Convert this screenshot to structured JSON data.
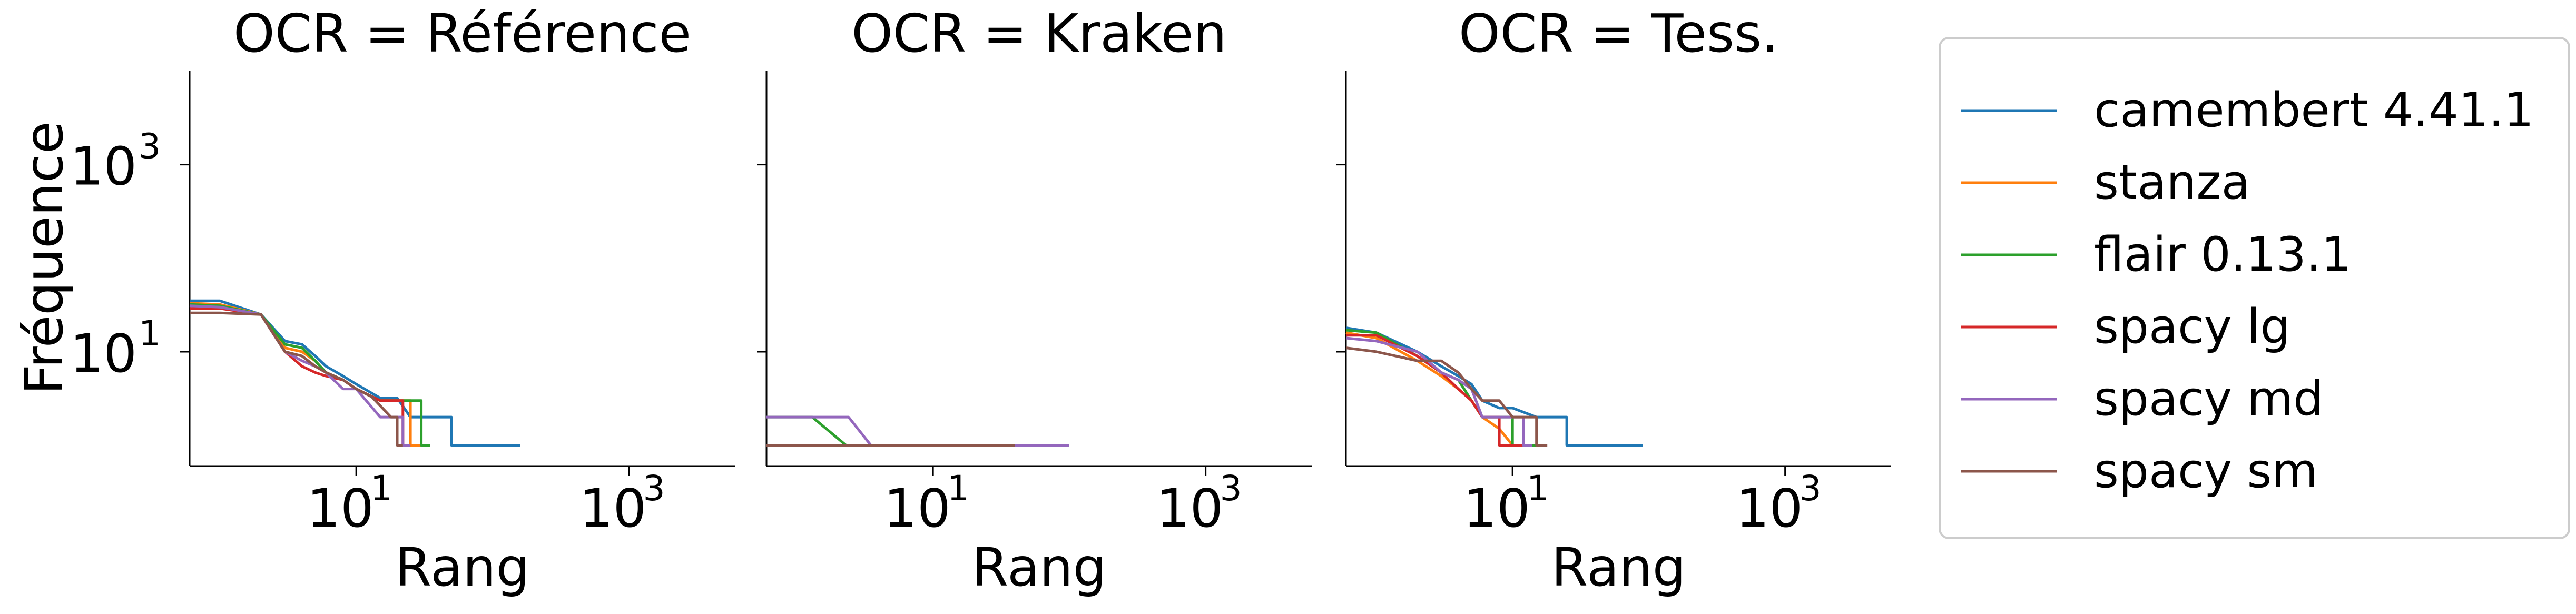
{
  "chart_data": {
    "type": "line",
    "scale": {
      "x": "log",
      "y": "log"
    },
    "xlim": [
      0.6,
      6000
    ],
    "ylim": [
      0.6,
      10000
    ],
    "x_ticks": [
      10,
      1000
    ],
    "y_ticks": [
      10,
      1000
    ],
    "tick_base": "10",
    "tick_exponents": [
      "1",
      "3"
    ],
    "ylabel": "Fréquence",
    "grid": false,
    "legend_position": "right",
    "legend": [
      {
        "name": "camembert 4.41.1",
        "color": "#1f77b4"
      },
      {
        "name": "stanza",
        "color": "#ff7f0e"
      },
      {
        "name": "flair 0.13.1",
        "color": "#2ca02c"
      },
      {
        "name": "spacy lg",
        "color": "#d62728"
      },
      {
        "name": "spacy md",
        "color": "#9467bd"
      },
      {
        "name": "spacy sm",
        "color": "#8c564b"
      }
    ],
    "panels": [
      {
        "title": "OCR = Référence",
        "xlabel": "Rang",
        "series": [
          {
            "name": "camembert 4.41.1",
            "points": [
              [
                0.6,
                35
              ],
              [
                1,
                35
              ],
              [
                2,
                25
              ],
              [
                3,
                13
              ],
              [
                4,
                12
              ],
              [
                5,
                9
              ],
              [
                6,
                7
              ],
              [
                8,
                5.5
              ],
              [
                10,
                4.5
              ],
              [
                15,
                3.2
              ],
              [
                20,
                3.2
              ],
              [
                25,
                2
              ],
              [
                50,
                2
              ],
              [
                50,
                1
              ],
              [
                160,
                1
              ]
            ]
          },
          {
            "name": "stanza",
            "points": [
              [
                0.6,
                33
              ],
              [
                1,
                32
              ],
              [
                2,
                25
              ],
              [
                3,
                11
              ],
              [
                4,
                10
              ],
              [
                5,
                8
              ],
              [
                6,
                6
              ],
              [
                8,
                5
              ],
              [
                10,
                4
              ],
              [
                15,
                3
              ],
              [
                25,
                3
              ],
              [
                25,
                1
              ],
              [
                30,
                1
              ]
            ]
          },
          {
            "name": "flair 0.13.1",
            "points": [
              [
                0.6,
                32
              ],
              [
                1,
                31
              ],
              [
                2,
                25
              ],
              [
                3,
                12
              ],
              [
                4,
                11
              ],
              [
                5,
                8
              ],
              [
                6,
                6
              ],
              [
                8,
                5
              ],
              [
                10,
                4
              ],
              [
                15,
                3
              ],
              [
                30,
                3
              ],
              [
                30,
                1
              ],
              [
                35,
                1
              ]
            ]
          },
          {
            "name": "spacy lg",
            "points": [
              [
                0.6,
                29
              ],
              [
                1,
                29
              ],
              [
                2,
                25
              ],
              [
                3,
                10
              ],
              [
                4,
                7
              ],
              [
                5,
                6
              ],
              [
                6,
                5.5
              ],
              [
                8,
                5
              ],
              [
                10,
                4
              ],
              [
                15,
                3
              ],
              [
                22,
                3
              ],
              [
                22,
                1
              ],
              [
                25,
                1
              ]
            ]
          },
          {
            "name": "spacy md",
            "points": [
              [
                0.6,
                31
              ],
              [
                1,
                30
              ],
              [
                2,
                25
              ],
              [
                3,
                10
              ],
              [
                4,
                8
              ],
              [
                5,
                7
              ],
              [
                6,
                6
              ],
              [
                8,
                4
              ],
              [
                10,
                4
              ],
              [
                15,
                2
              ],
              [
                22,
                2
              ],
              [
                22,
                1
              ],
              [
                25,
                1
              ]
            ]
          },
          {
            "name": "spacy sm",
            "points": [
              [
                0.6,
                26
              ],
              [
                1,
                26
              ],
              [
                2,
                25
              ],
              [
                3,
                10
              ],
              [
                4,
                9
              ],
              [
                5,
                7
              ],
              [
                6,
                6
              ],
              [
                8,
                5
              ],
              [
                10,
                4
              ],
              [
                13,
                3.3
              ],
              [
                18,
                2
              ],
              [
                20,
                2
              ],
              [
                20,
                1
              ],
              [
                22,
                1
              ]
            ]
          }
        ]
      },
      {
        "title": "OCR = Kraken",
        "xlabel": "Rang",
        "series": [
          {
            "name": "camembert 4.41.1",
            "points": [
              [
                0.6,
                1
              ],
              [
                100,
                1
              ]
            ]
          },
          {
            "name": "stanza",
            "points": [
              [
                0.6,
                1
              ],
              [
                80,
                1
              ]
            ]
          },
          {
            "name": "flair 0.13.1",
            "points": [
              [
                0.6,
                2
              ],
              [
                1.3,
                2
              ],
              [
                2.3,
                1
              ],
              [
                60,
                1
              ]
            ]
          },
          {
            "name": "spacy lg",
            "points": [
              [
                0.6,
                1
              ],
              [
                50,
                1
              ]
            ]
          },
          {
            "name": "spacy md",
            "points": [
              [
                0.6,
                2
              ],
              [
                2.4,
                2
              ],
              [
                3.5,
                1
              ],
              [
                100,
                1
              ]
            ]
          },
          {
            "name": "spacy sm",
            "points": [
              [
                0.6,
                1
              ],
              [
                40,
                1
              ]
            ]
          }
        ]
      },
      {
        "title": "OCR = Tess.",
        "xlabel": "Rang",
        "series": [
          {
            "name": "camembert 4.41.1",
            "points": [
              [
                0.6,
                18
              ],
              [
                1,
                16
              ],
              [
                2,
                10
              ],
              [
                3,
                7
              ],
              [
                4,
                5.5
              ],
              [
                5,
                4.5
              ],
              [
                6,
                3
              ],
              [
                8,
                2.5
              ],
              [
                10,
                2.5
              ],
              [
                15,
                2
              ],
              [
                25,
                2
              ],
              [
                25,
                1
              ],
              [
                90,
                1
              ]
            ]
          },
          {
            "name": "stanza",
            "points": [
              [
                0.6,
                16
              ],
              [
                1,
                14
              ],
              [
                2,
                8
              ],
              [
                3,
                5.5
              ],
              [
                4,
                4
              ],
              [
                5,
                3
              ],
              [
                6,
                2
              ],
              [
                8,
                1.5
              ],
              [
                10,
                1
              ],
              [
                12,
                1
              ]
            ]
          },
          {
            "name": "flair 0.13.1",
            "points": [
              [
                0.6,
                17
              ],
              [
                1,
                16
              ],
              [
                2,
                9
              ],
              [
                3,
                6
              ],
              [
                4,
                5
              ],
              [
                5,
                3
              ],
              [
                6,
                2
              ],
              [
                10,
                2
              ],
              [
                10,
                1
              ],
              [
                15,
                1
              ]
            ]
          },
          {
            "name": "spacy lg",
            "points": [
              [
                0.6,
                15
              ],
              [
                1,
                15
              ],
              [
                2,
                9
              ],
              [
                3,
                6
              ],
              [
                4,
                4
              ],
              [
                5,
                3
              ],
              [
                6,
                2
              ],
              [
                8,
                2
              ],
              [
                8,
                1
              ],
              [
                12,
                1
              ]
            ]
          },
          {
            "name": "spacy md",
            "points": [
              [
                0.6,
                14
              ],
              [
                1,
                13
              ],
              [
                2,
                10
              ],
              [
                3,
                6
              ],
              [
                4,
                5
              ],
              [
                5,
                4
              ],
              [
                6,
                2
              ],
              [
                10,
                2
              ],
              [
                12,
                2
              ],
              [
                12,
                1
              ],
              [
                14,
                1
              ]
            ]
          },
          {
            "name": "spacy sm",
            "points": [
              [
                0.6,
                11
              ],
              [
                1,
                10
              ],
              [
                2,
                8
              ],
              [
                3,
                8
              ],
              [
                4,
                6
              ],
              [
                5,
                4
              ],
              [
                6,
                3
              ],
              [
                8,
                3
              ],
              [
                10,
                2
              ],
              [
                15,
                2
              ],
              [
                15,
                1
              ],
              [
                18,
                1
              ]
            ]
          }
        ]
      }
    ]
  }
}
